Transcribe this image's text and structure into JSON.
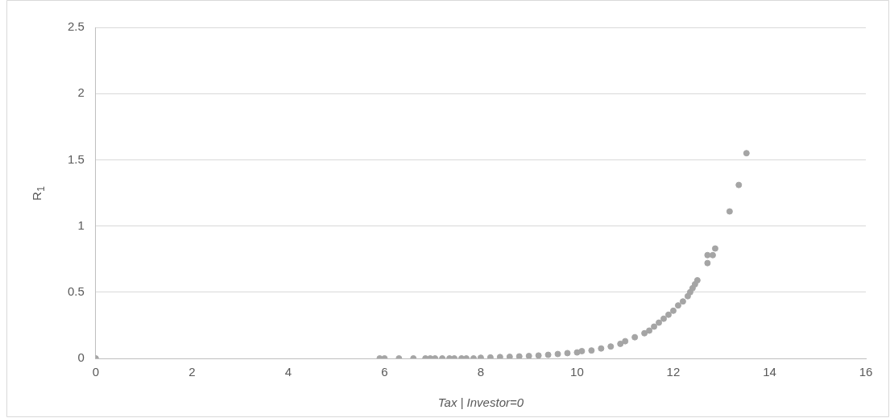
{
  "chart_data": {
    "type": "scatter",
    "xlabel": "Tax | Investor=0",
    "ylabel": "R$_{1}$",
    "xlim": [
      0,
      16
    ],
    "xticks": [
      0,
      2,
      4,
      6,
      8,
      10,
      12,
      14,
      16
    ],
    "ylim": [
      0,
      2.5
    ],
    "yticks": [
      0,
      0.5,
      1,
      1.5,
      2,
      2.5
    ],
    "grid": "y",
    "legend": false,
    "marker": "circle",
    "series": [
      {
        "color": "#a5a5a5",
        "x": [
          0,
          5.9,
          6.0,
          6.3,
          6.6,
          6.85,
          6.95,
          7.05,
          7.2,
          7.35,
          7.45,
          7.6,
          7.7,
          7.85,
          8.0,
          8.2,
          8.4,
          8.6,
          8.8,
          9.0,
          9.2,
          9.4,
          9.6,
          9.8,
          10.0,
          10.1,
          10.3,
          10.5,
          10.7,
          10.9,
          11.0,
          11.2,
          11.4,
          11.5,
          11.6,
          11.7,
          11.8,
          11.9,
          12.0,
          12.1,
          12.2,
          12.3,
          12.35,
          12.4,
          12.45,
          12.5,
          12.71,
          12.71,
          12.82,
          12.87,
          13.17,
          13.36,
          13.52
        ],
        "values": [
          0,
          0,
          0,
          0,
          0,
          0,
          0,
          0,
          0,
          0,
          0,
          0,
          0,
          0,
          0.005,
          0.007,
          0.01,
          0.012,
          0.015,
          0.018,
          0.022,
          0.027,
          0.033,
          0.04,
          0.045,
          0.055,
          0.06,
          0.075,
          0.09,
          0.11,
          0.13,
          0.16,
          0.19,
          0.21,
          0.24,
          0.27,
          0.3,
          0.33,
          0.36,
          0.4,
          0.43,
          0.47,
          0.5,
          0.53,
          0.56,
          0.59,
          0.72,
          0.78,
          0.78,
          0.83,
          1.11,
          1.31,
          1.55
        ]
      }
    ]
  }
}
